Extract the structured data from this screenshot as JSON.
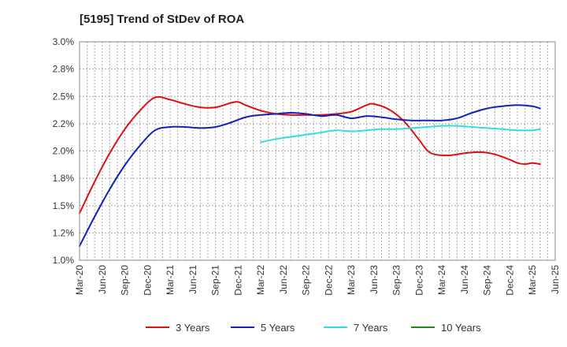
{
  "chart_data": {
    "type": "line",
    "title": "[5195]  Trend of StDev of ROA",
    "xlabel": "",
    "ylabel": "",
    "ylim": [
      1.0,
      3.0
    ],
    "y_ticks": [
      "1.0%",
      "1.2%",
      "1.5%",
      "1.8%",
      "2.0%",
      "2.2%",
      "2.5%",
      "2.8%",
      "3.0%"
    ],
    "x_ticks": [
      "Mar-20",
      "Jun-20",
      "Sep-20",
      "Dec-20",
      "Mar-21",
      "Jun-21",
      "Sep-21",
      "Dec-21",
      "Mar-22",
      "Jun-22",
      "Sep-22",
      "Dec-22",
      "Mar-23",
      "Jun-23",
      "Sep-23",
      "Dec-23",
      "Mar-24",
      "Jun-24",
      "Sep-24",
      "Dec-24",
      "Mar-25",
      "Jun-25"
    ],
    "grid": true,
    "legend_position": "bottom",
    "series": [
      {
        "name": "3 Years",
        "color": "#dd1111",
        "points": [
          [
            "Mar-20",
            1.43
          ],
          [
            "May-20",
            1.72
          ],
          [
            "Jul-20",
            1.98
          ],
          [
            "Sep-20",
            2.2
          ],
          [
            "Nov-20",
            2.37
          ],
          [
            "Jan-21",
            2.49
          ],
          [
            "Mar-21",
            2.47
          ],
          [
            "May-21",
            2.43
          ],
          [
            "Jul-21",
            2.4
          ],
          [
            "Sep-21",
            2.4
          ],
          [
            "Nov-21",
            2.44
          ],
          [
            "Dec-21",
            2.45
          ],
          [
            "Jan-22",
            2.42
          ],
          [
            "Mar-22",
            2.37
          ],
          [
            "May-22",
            2.34
          ],
          [
            "Jul-22",
            2.33
          ],
          [
            "Sep-22",
            2.33
          ],
          [
            "Nov-22",
            2.33
          ],
          [
            "Jan-23",
            2.34
          ],
          [
            "Mar-23",
            2.36
          ],
          [
            "May-23",
            2.42
          ],
          [
            "Jun-23",
            2.43
          ],
          [
            "Aug-23",
            2.38
          ],
          [
            "Oct-23",
            2.27
          ],
          [
            "Dec-23",
            2.1
          ],
          [
            "Jan-24",
            2.01
          ],
          [
            "Feb-24",
            1.97
          ],
          [
            "Apr-24",
            1.96
          ],
          [
            "Jun-24",
            1.98
          ],
          [
            "Aug-24",
            1.99
          ],
          [
            "Oct-24",
            1.97
          ],
          [
            "Dec-24",
            1.92
          ],
          [
            "Jan-25",
            1.89
          ],
          [
            "Feb-25",
            1.88
          ],
          [
            "Mar-25",
            1.89
          ],
          [
            "Apr-25",
            1.88
          ]
        ]
      },
      {
        "name": "5 Years",
        "color": "#1122bb",
        "points": [
          [
            "Mar-20",
            1.13
          ],
          [
            "May-20",
            1.4
          ],
          [
            "Jul-20",
            1.65
          ],
          [
            "Sep-20",
            1.87
          ],
          [
            "Nov-20",
            2.05
          ],
          [
            "Jan-21",
            2.19
          ],
          [
            "Mar-21",
            2.22
          ],
          [
            "May-21",
            2.22
          ],
          [
            "Jul-21",
            2.21
          ],
          [
            "Sep-21",
            2.22
          ],
          [
            "Nov-21",
            2.26
          ],
          [
            "Jan-22",
            2.31
          ],
          [
            "Mar-22",
            2.33
          ],
          [
            "May-22",
            2.34
          ],
          [
            "Jul-22",
            2.35
          ],
          [
            "Sep-22",
            2.34
          ],
          [
            "Nov-22",
            2.32
          ],
          [
            "Jan-23",
            2.33
          ],
          [
            "Mar-23",
            2.3
          ],
          [
            "May-23",
            2.32
          ],
          [
            "Jul-23",
            2.31
          ],
          [
            "Sep-23",
            2.29
          ],
          [
            "Nov-23",
            2.28
          ],
          [
            "Jan-24",
            2.28
          ],
          [
            "Mar-24",
            2.28
          ],
          [
            "May-24",
            2.3
          ],
          [
            "Jul-24",
            2.35
          ],
          [
            "Sep-24",
            2.39
          ],
          [
            "Nov-24",
            2.41
          ],
          [
            "Jan-25",
            2.42
          ],
          [
            "Mar-25",
            2.41
          ],
          [
            "Apr-25",
            2.39
          ]
        ]
      },
      {
        "name": "7 Years",
        "color": "#33dddd",
        "points": [
          [
            "Mar-22",
            2.08
          ],
          [
            "May-22",
            2.11
          ],
          [
            "Jul-22",
            2.13
          ],
          [
            "Sep-22",
            2.15
          ],
          [
            "Nov-22",
            2.17
          ],
          [
            "Jan-23",
            2.19
          ],
          [
            "Mar-23",
            2.18
          ],
          [
            "May-23",
            2.19
          ],
          [
            "Jul-23",
            2.2
          ],
          [
            "Sep-23",
            2.2
          ],
          [
            "Nov-23",
            2.21
          ],
          [
            "Jan-24",
            2.22
          ],
          [
            "Mar-24",
            2.23
          ],
          [
            "May-24",
            2.23
          ],
          [
            "Jul-24",
            2.22
          ],
          [
            "Sep-24",
            2.21
          ],
          [
            "Nov-24",
            2.2
          ],
          [
            "Jan-25",
            2.19
          ],
          [
            "Mar-25",
            2.19
          ],
          [
            "Apr-25",
            2.2
          ]
        ]
      },
      {
        "name": "10 Years",
        "color": "#228822",
        "points": []
      }
    ]
  }
}
